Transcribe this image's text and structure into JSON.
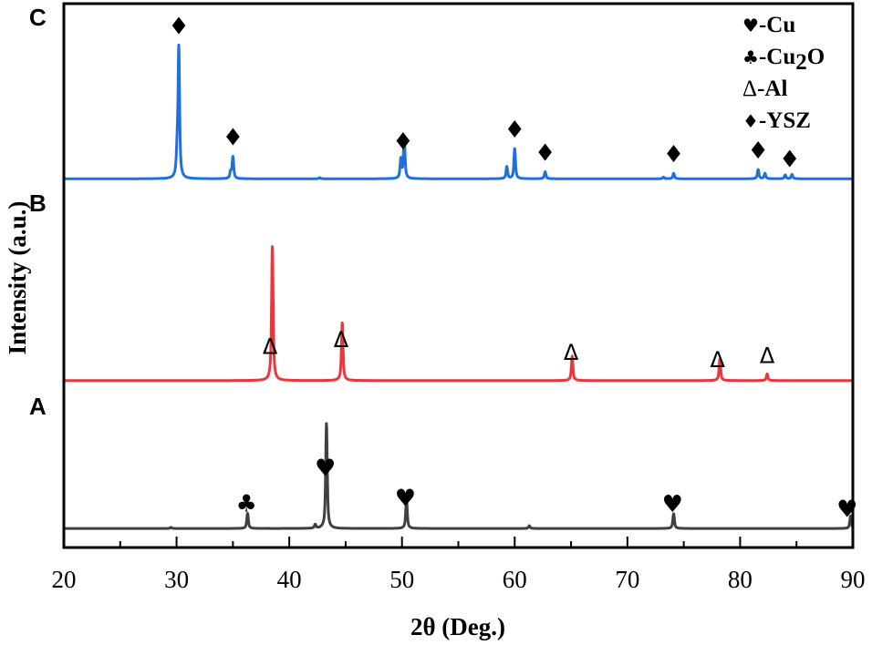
{
  "chart_data": {
    "type": "line",
    "xlabel": "2θ (Deg.)",
    "ylabel": "Intensity (a.u.)",
    "xlim": [
      20,
      90
    ],
    "ylim": [
      0,
      100
    ],
    "xticks": [
      "20",
      "30",
      "40",
      "50",
      "60",
      "70",
      "80",
      "90"
    ],
    "grid": false,
    "legend_placement": "top-right",
    "legend": [
      {
        "symbol": "♥",
        "text": "-Cu"
      },
      {
        "symbol": "♣",
        "text": "-Cu",
        "sub": "2",
        "tail": "O"
      },
      {
        "symbol": "Δ",
        "text": "-Al"
      },
      {
        "symbol": "♦",
        "text": "-YSZ"
      }
    ],
    "series": [
      {
        "panel": "A",
        "color": "#404040",
        "baseline": 3.5,
        "peaks": [
          [
            29.5,
            0.2
          ],
          [
            36.3,
            2.8
          ],
          [
            42.3,
            0.7
          ],
          [
            43.3,
            19.3
          ],
          [
            50.4,
            5.4
          ],
          [
            61.3,
            0.5
          ],
          [
            74.1,
            2.7
          ],
          [
            89.8,
            2.3
          ]
        ],
        "markers": [
          {
            "x": 36.2,
            "symbol": "♣"
          },
          {
            "x": 43.2,
            "symbol": "♥"
          },
          {
            "x": 50.3,
            "symbol": "♥"
          },
          {
            "x": 74.0,
            "symbol": "♥"
          },
          {
            "x": 89.5,
            "symbol": "♥"
          }
        ]
      },
      {
        "panel": "B",
        "color": "#e8383d",
        "baseline": 30.7,
        "peaks": [
          [
            38.5,
            24.6
          ],
          [
            44.7,
            10.6
          ],
          [
            65.1,
            4.5
          ],
          [
            78.2,
            3.9
          ],
          [
            82.4,
            1.2
          ]
        ],
        "markers": [
          {
            "x": 38.3,
            "symbol": "Δ"
          },
          {
            "x": 44.6,
            "symbol": "Δ"
          },
          {
            "x": 65.0,
            "symbol": "Δ"
          },
          {
            "x": 78.0,
            "symbol": "Δ"
          },
          {
            "x": 82.4,
            "symbol": "Δ"
          }
        ]
      },
      {
        "panel": "C",
        "color": "#1f6fdc",
        "baseline": 67.8,
        "peaks": [
          [
            30.2,
            23.8
          ],
          [
            30.05,
            4
          ],
          [
            34.8,
            1.2
          ],
          [
            35.0,
            4.0
          ],
          [
            42.7,
            0.2
          ],
          [
            49.9,
            3.5
          ],
          [
            50.2,
            7.5
          ],
          [
            59.3,
            2.2
          ],
          [
            60.0,
            5.5
          ],
          [
            62.7,
            1.3
          ],
          [
            73.2,
            0.3
          ],
          [
            74.1,
            1.0
          ],
          [
            81.6,
            1.7
          ],
          [
            82.2,
            1.0
          ],
          [
            84.0,
            0.7
          ],
          [
            84.6,
            0.8
          ]
        ],
        "markers": [
          {
            "x": 30.2,
            "symbol": "♦"
          },
          {
            "x": 35.0,
            "symbol": "♦"
          },
          {
            "x": 50.1,
            "symbol": "♦"
          },
          {
            "x": 60.0,
            "symbol": "♦"
          },
          {
            "x": 62.7,
            "symbol": "♦"
          },
          {
            "x": 74.1,
            "symbol": "♦"
          },
          {
            "x": 81.6,
            "symbol": "♦"
          },
          {
            "x": 84.4,
            "symbol": "♦"
          }
        ]
      }
    ]
  }
}
